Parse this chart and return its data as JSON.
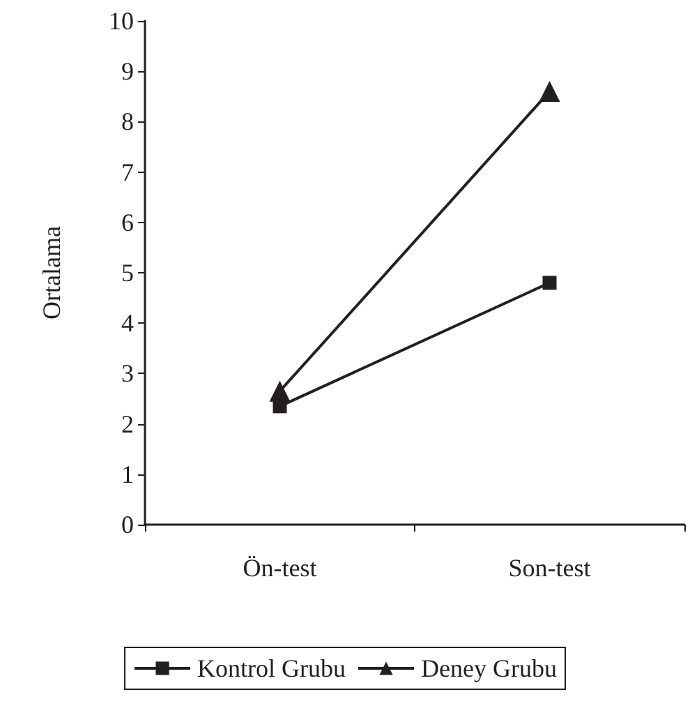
{
  "chart_data": {
    "type": "line",
    "ylabel": "Ortalama",
    "categories": [
      "Ön-test",
      "Son-test"
    ],
    "series": [
      {
        "name": "Kontrol Grubu",
        "color": "#231f20",
        "marker": "square",
        "values": [
          2.35,
          4.8
        ]
      },
      {
        "name": "Deney Grubu",
        "color": "#231f20",
        "marker": "triangle",
        "values": [
          2.65,
          8.6
        ]
      }
    ],
    "ylim": [
      0,
      10
    ],
    "yticks": [
      0,
      1,
      2,
      3,
      4,
      5,
      6,
      7,
      8,
      9,
      10
    ],
    "grid": false,
    "legend": "bottom",
    "line_style": "solid"
  }
}
